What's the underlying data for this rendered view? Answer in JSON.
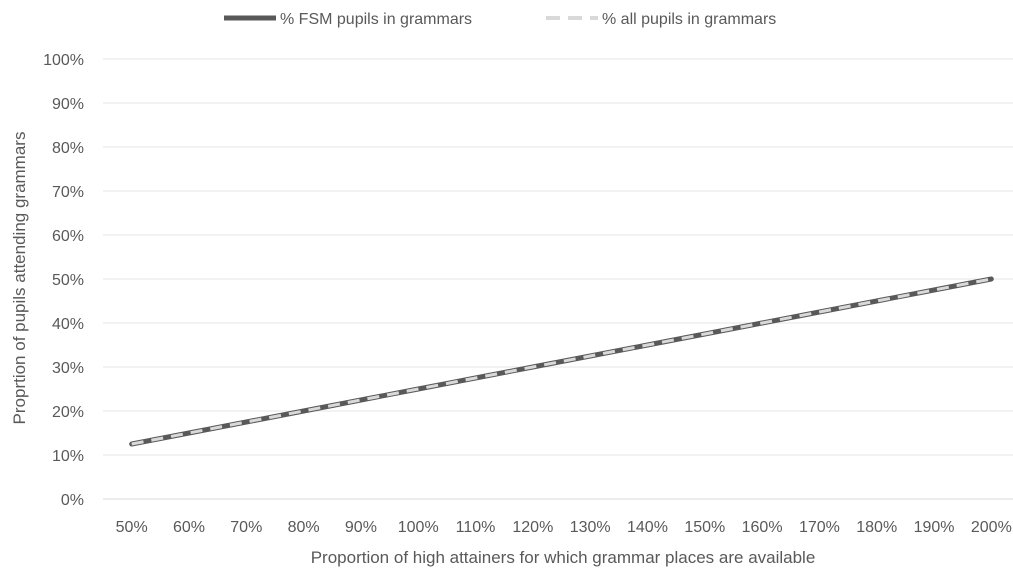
{
  "chart_data": {
    "type": "line",
    "title": "",
    "xlabel": "Proportion of high attainers for which grammar places are available",
    "ylabel": "Proprtion of pupils attending grammars",
    "categories": [
      "50%",
      "60%",
      "70%",
      "80%",
      "90%",
      "100%",
      "110%",
      "120%",
      "130%",
      "140%",
      "150%",
      "160%",
      "170%",
      "180%",
      "190%",
      "200%"
    ],
    "x": [
      50,
      60,
      70,
      80,
      90,
      100,
      110,
      120,
      130,
      140,
      150,
      160,
      170,
      180,
      190,
      200
    ],
    "yticks": [
      "0%",
      "10%",
      "20%",
      "30%",
      "40%",
      "50%",
      "60%",
      "70%",
      "80%",
      "90%",
      "100%"
    ],
    "ylim": [
      0,
      100
    ],
    "grid": true,
    "legend_position": "top",
    "series": [
      {
        "name": "% FSM pupils in grammars",
        "color": "#595959",
        "style": "solid",
        "values": [
          12.5,
          15,
          17.5,
          20,
          22.5,
          25,
          27.5,
          30,
          32.5,
          35,
          37.5,
          40,
          42.5,
          45,
          47.5,
          50
        ]
      },
      {
        "name": "% all pupils in grammars",
        "color": "#d9d9d9",
        "style": "dashed",
        "values": [
          12.5,
          15,
          17.5,
          20,
          22.5,
          25,
          27.5,
          30,
          32.5,
          35,
          37.5,
          40,
          42.5,
          45,
          47.5,
          50
        ]
      }
    ]
  }
}
